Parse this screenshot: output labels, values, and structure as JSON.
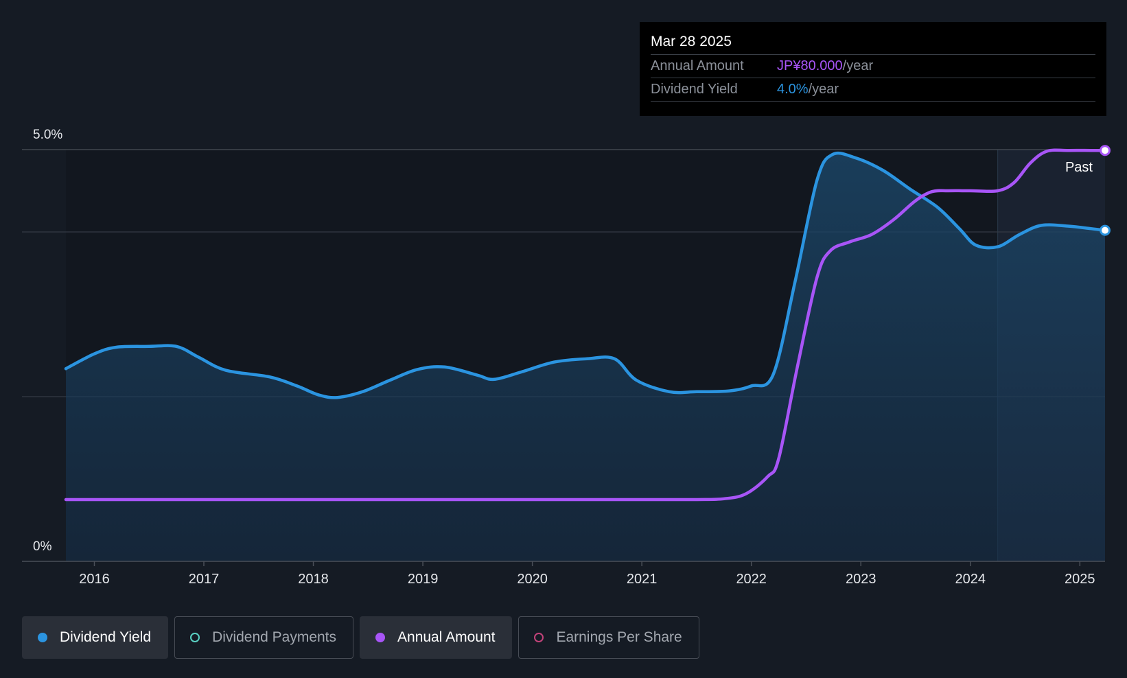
{
  "tooltip": {
    "date": "Mar 28 2025",
    "annual_label": "Annual Amount",
    "annual_value": "JP¥80.000",
    "annual_unit": "/year",
    "yield_label": "Dividend Yield",
    "yield_value": "4.0%",
    "yield_unit": "/year"
  },
  "chart_data": {
    "type": "line",
    "title": "",
    "xlabel": "",
    "ylabel": "",
    "ylim": [
      0,
      5.0
    ],
    "y_tick_labels": [
      "5.0%",
      "0%"
    ],
    "x_ticks": [
      "2016",
      "2017",
      "2018",
      "2019",
      "2020",
      "2021",
      "2022",
      "2023",
      "2024",
      "2025"
    ],
    "x_range": [
      2015.74,
      2025.23
    ],
    "past_region_start": 2024.25,
    "past_label": "Past",
    "series": [
      {
        "name": "Dividend Yield",
        "unit": "%",
        "color": "#2b94e0",
        "area": true,
        "points": [
          [
            2015.74,
            2.34
          ],
          [
            2016.0,
            2.52
          ],
          [
            2016.2,
            2.6
          ],
          [
            2016.5,
            2.61
          ],
          [
            2016.75,
            2.61
          ],
          [
            2016.95,
            2.48
          ],
          [
            2017.2,
            2.32
          ],
          [
            2017.6,
            2.24
          ],
          [
            2017.85,
            2.13
          ],
          [
            2018.05,
            2.02
          ],
          [
            2018.22,
            1.99
          ],
          [
            2018.45,
            2.06
          ],
          [
            2018.7,
            2.2
          ],
          [
            2018.95,
            2.33
          ],
          [
            2019.2,
            2.36
          ],
          [
            2019.5,
            2.26
          ],
          [
            2019.65,
            2.21
          ],
          [
            2019.9,
            2.3
          ],
          [
            2020.2,
            2.42
          ],
          [
            2020.5,
            2.46
          ],
          [
            2020.75,
            2.46
          ],
          [
            2020.95,
            2.2
          ],
          [
            2021.25,
            2.06
          ],
          [
            2021.5,
            2.06
          ],
          [
            2021.8,
            2.07
          ],
          [
            2022.0,
            2.13
          ],
          [
            2022.2,
            2.27
          ],
          [
            2022.4,
            3.4
          ],
          [
            2022.6,
            4.63
          ],
          [
            2022.74,
            4.94
          ],
          [
            2022.95,
            4.9
          ],
          [
            2023.2,
            4.75
          ],
          [
            2023.45,
            4.52
          ],
          [
            2023.7,
            4.3
          ],
          [
            2023.9,
            4.04
          ],
          [
            2024.05,
            3.84
          ],
          [
            2024.25,
            3.82
          ],
          [
            2024.45,
            3.97
          ],
          [
            2024.65,
            4.08
          ],
          [
            2024.9,
            4.07
          ],
          [
            2025.1,
            4.04
          ],
          [
            2025.23,
            4.02
          ]
        ]
      },
      {
        "name": "Annual Amount",
        "unit": "JP¥",
        "color": "#a855f7",
        "area": false,
        "points": [
          [
            2015.74,
            0.75
          ],
          [
            2016.5,
            0.75
          ],
          [
            2017.5,
            0.75
          ],
          [
            2018.5,
            0.75
          ],
          [
            2019.5,
            0.75
          ],
          [
            2020.5,
            0.75
          ],
          [
            2021.0,
            0.75
          ],
          [
            2021.5,
            0.75
          ],
          [
            2021.75,
            0.76
          ],
          [
            2021.95,
            0.82
          ],
          [
            2022.15,
            1.03
          ],
          [
            2022.25,
            1.25
          ],
          [
            2022.42,
            2.36
          ],
          [
            2022.6,
            3.45
          ],
          [
            2022.72,
            3.77
          ],
          [
            2022.9,
            3.88
          ],
          [
            2023.1,
            3.97
          ],
          [
            2023.3,
            4.15
          ],
          [
            2023.5,
            4.38
          ],
          [
            2023.65,
            4.49
          ],
          [
            2023.8,
            4.5
          ],
          [
            2024.0,
            4.5
          ],
          [
            2024.25,
            4.5
          ],
          [
            2024.4,
            4.6
          ],
          [
            2024.55,
            4.84
          ],
          [
            2024.7,
            4.98
          ],
          [
            2024.9,
            4.99
          ],
          [
            2025.1,
            4.99
          ],
          [
            2025.23,
            4.99
          ]
        ]
      }
    ]
  },
  "legend": {
    "items": [
      {
        "label": "Dividend Yield",
        "color": "#2b94e0",
        "state": "active"
      },
      {
        "label": "Dividend Payments",
        "color": "#5ad1c3",
        "state": "inactive"
      },
      {
        "label": "Annual Amount",
        "color": "#a855f7",
        "state": "active"
      },
      {
        "label": "Earnings Per Share",
        "color": "#c2437a",
        "state": "inactive"
      }
    ]
  }
}
